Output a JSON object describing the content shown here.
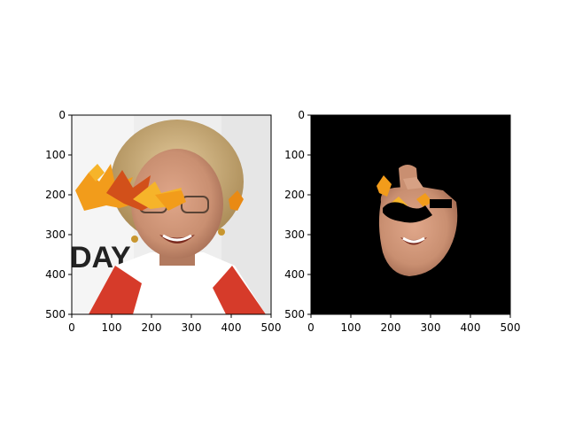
{
  "figure": {
    "panels": [
      {
        "name": "left-image-panel",
        "content": "portrait photo of smiling woman with blonde hair, glasses, autumn leaves overlay across forehead; partial 'DAY' text on background banner",
        "background_text": "DAY",
        "x_ticks": [
          "0",
          "100",
          "200",
          "300",
          "400",
          "500"
        ],
        "y_ticks": [
          "0",
          "100",
          "200",
          "300",
          "400",
          "500"
        ]
      },
      {
        "name": "right-image-panel",
        "content": "segmented face region on black background, with autumn leaves and black occlusion over eyes",
        "x_ticks": [
          "0",
          "100",
          "200",
          "300",
          "400",
          "500"
        ],
        "y_ticks": [
          "0",
          "100",
          "200",
          "300",
          "400",
          "500"
        ]
      }
    ],
    "colors": {
      "background": "#ffffff",
      "mask_bg": "#000000",
      "hair": "#c9a46a",
      "skin": "#c98f71",
      "leaf_orange": "#f29c1b",
      "leaf_red": "#d2501a",
      "red_scarf": "#d63b2a"
    }
  }
}
